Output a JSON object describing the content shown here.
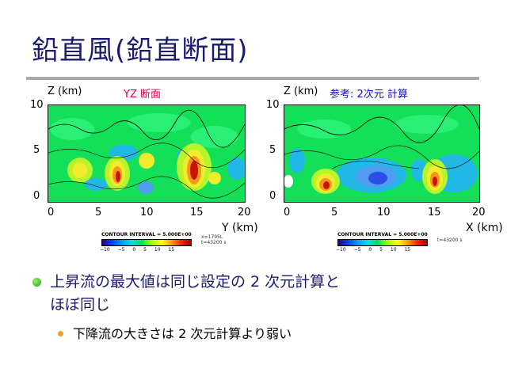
{
  "slide": {
    "title": "鉛直風(鉛直断面)",
    "bullets": [
      {
        "text_line1": "上昇流の最大値は同じ設定の 2 次元計算と",
        "text_line2": "ほぼ同じ"
      },
      {
        "text": "下降流の大きさは 2 次元計算より弱い"
      }
    ]
  },
  "panels": [
    {
      "axis_z_label": "Z (km)",
      "title": "YZ 断面",
      "z_ticks": [
        "10",
        "5",
        "0"
      ],
      "h_ticks": [
        "0",
        "5",
        "10",
        "15",
        "20"
      ],
      "h_label": "Y (km)",
      "contour_interval": "CONTOUR INTERVAL = 5.000E+00",
      "colorbar_ticks": [
        "−10",
        "−5",
        "0",
        "5",
        "10",
        "15"
      ],
      "meta_line1": "x=1795L",
      "meta_line2": "t=43200 s"
    },
    {
      "axis_z_label": "Z (km)",
      "title": "参考: 2次元 計算",
      "z_ticks": [
        "10",
        "5",
        "0"
      ],
      "h_ticks": [
        "0",
        "5",
        "10",
        "15",
        "20"
      ],
      "h_label": "X (km)",
      "contour_interval": "CONTOUR INTERVAL = 5.000E+00",
      "colorbar_ticks": [
        "−10",
        "−5",
        "0",
        "5",
        "10",
        "15"
      ],
      "meta_line1": "t=43200 s"
    }
  ]
}
